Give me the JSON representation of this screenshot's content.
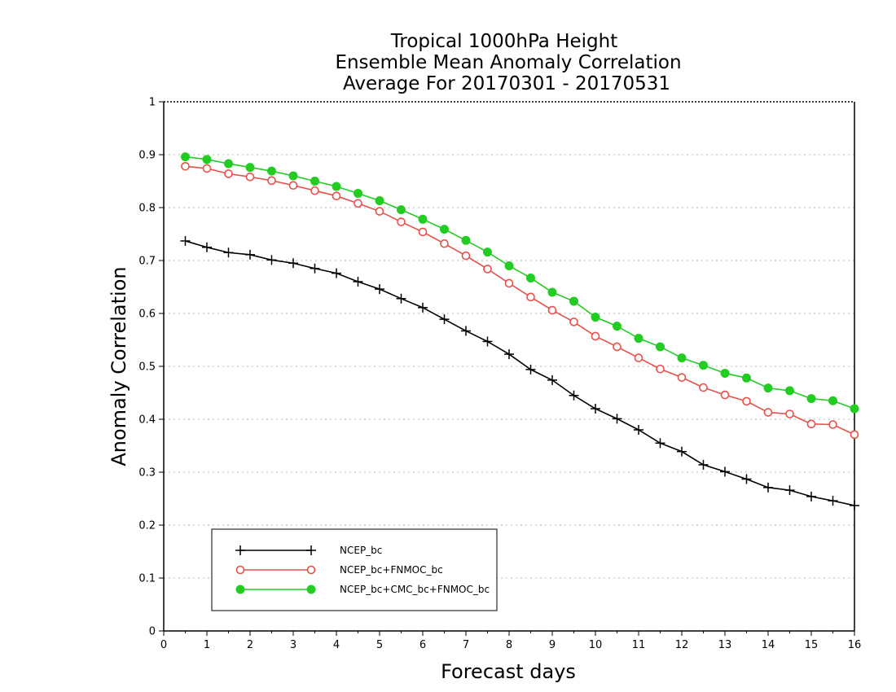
{
  "chart_data": {
    "type": "line",
    "title": [
      "Tropical 1000hPa Height",
      "Ensemble Mean Anomaly Correlation",
      "Average For 20170301 - 20170531"
    ],
    "xlabel": "Forecast days",
    "ylabel": "Anomaly Correlation",
    "xlim": [
      0,
      16
    ],
    "ylim": [
      0,
      1
    ],
    "xticks": [
      0,
      1,
      2,
      3,
      4,
      5,
      6,
      7,
      8,
      9,
      10,
      11,
      12,
      13,
      14,
      15,
      16
    ],
    "yticks": [
      0,
      0.1,
      0.2,
      0.3,
      0.4,
      0.5,
      0.6,
      0.7,
      0.8,
      0.9,
      1
    ],
    "grid": "horizontal dotted",
    "legend_position": "bottom-left",
    "x": [
      0.5,
      1,
      1.5,
      2,
      2.5,
      3,
      3.5,
      4,
      4.5,
      5,
      5.5,
      6,
      6.5,
      7,
      7.5,
      8,
      8.5,
      9,
      9.5,
      10,
      10.5,
      11,
      11.5,
      12,
      12.5,
      13,
      13.5,
      14,
      14.5,
      15,
      15.5,
      16
    ],
    "series": [
      {
        "name": "NCEP_bc",
        "color": "#000000",
        "marker": "plus",
        "values": [
          0.737,
          0.725,
          0.715,
          0.711,
          0.701,
          0.695,
          0.685,
          0.676,
          0.66,
          0.646,
          0.628,
          0.611,
          0.589,
          0.567,
          0.547,
          0.523,
          0.494,
          0.474,
          0.445,
          0.42,
          0.401,
          0.38,
          0.355,
          0.339,
          0.314,
          0.301,
          0.287,
          0.271,
          0.266,
          0.254,
          0.246,
          0.237
        ]
      },
      {
        "name": "NCEP_bc+FNMOC_bc",
        "color": "#e8504a",
        "marker": "open-circle",
        "values": [
          0.878,
          0.874,
          0.864,
          0.858,
          0.851,
          0.842,
          0.832,
          0.822,
          0.808,
          0.793,
          0.773,
          0.754,
          0.732,
          0.709,
          0.684,
          0.657,
          0.631,
          0.606,
          0.584,
          0.557,
          0.537,
          0.516,
          0.495,
          0.479,
          0.46,
          0.446,
          0.434,
          0.413,
          0.41,
          0.391,
          0.39,
          0.371
        ]
      },
      {
        "name": "NCEP_bc+CMC_bc+FNMOC_bc",
        "color": "#22cc22",
        "marker": "filled-circle",
        "values": [
          0.896,
          0.891,
          0.883,
          0.876,
          0.869,
          0.86,
          0.85,
          0.84,
          0.827,
          0.813,
          0.796,
          0.778,
          0.759,
          0.738,
          0.716,
          0.69,
          0.667,
          0.64,
          0.623,
          0.593,
          0.576,
          0.553,
          0.537,
          0.516,
          0.502,
          0.487,
          0.478,
          0.459,
          0.454,
          0.439,
          0.435,
          0.42
        ]
      }
    ]
  }
}
